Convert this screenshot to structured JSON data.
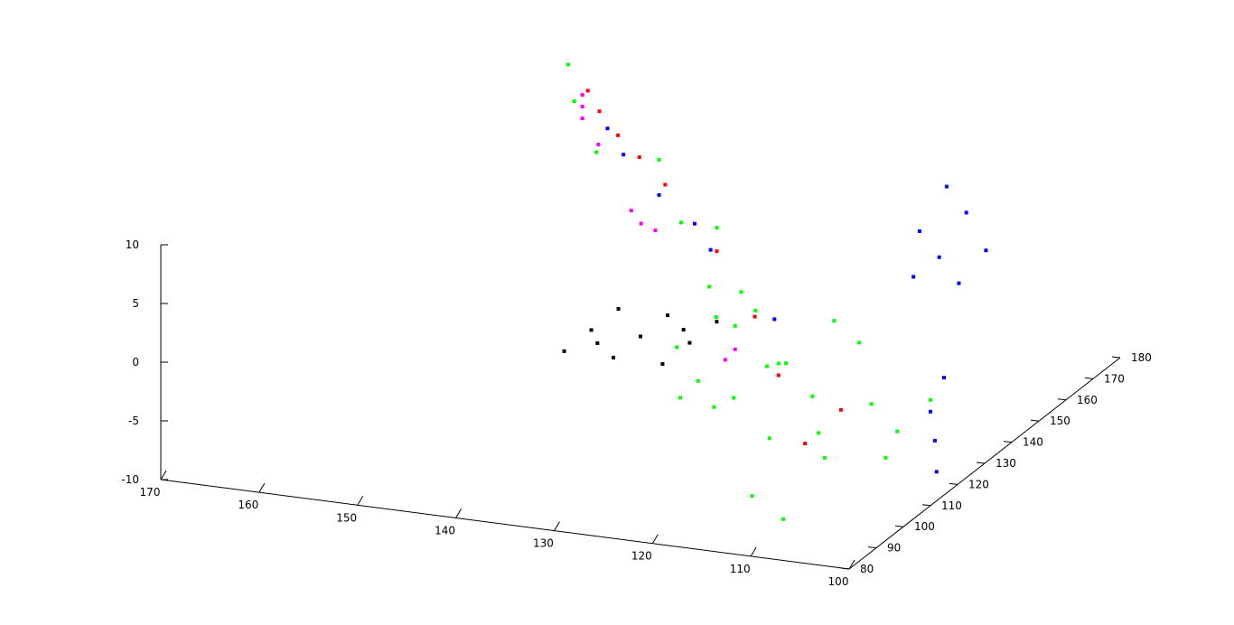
{
  "chart_data": {
    "type": "scatter",
    "title": "",
    "xlabel": "",
    "ylabel": "",
    "zlabel": "",
    "grid": false,
    "legend": "none",
    "axes": {
      "x": {
        "ticks": [
          100,
          110,
          120,
          130,
          140,
          150,
          160,
          170
        ],
        "range": [
          100,
          170
        ]
      },
      "y": {
        "ticks": [
          80,
          90,
          100,
          110,
          120,
          130,
          140,
          150,
          160,
          170,
          180
        ],
        "range": [
          80,
          180
        ]
      },
      "z": {
        "ticks": [
          -10,
          -5,
          0,
          5,
          10
        ],
        "range": [
          -10,
          10
        ]
      }
    },
    "series_colors": {
      "ground": "#000000",
      "vegetation": "#00ff00",
      "building": "#0000ff",
      "wire": "#ff0000",
      "pole": "#ff00ff"
    },
    "series": [
      {
        "class": "ground",
        "color": "#000000",
        "points": [
          [
            140,
            120,
            -3
          ],
          [
            135,
            120,
            -3
          ],
          [
            130,
            120,
            -3
          ],
          [
            140,
            130,
            -3
          ],
          [
            135,
            130,
            -3
          ],
          [
            130,
            130,
            -3
          ],
          [
            140,
            140,
            -3
          ],
          [
            135,
            140,
            -3
          ],
          [
            130,
            140,
            -3
          ],
          [
            138,
            125,
            -3
          ],
          [
            132,
            135,
            -3
          ]
        ]
      },
      {
        "class": "vegetation",
        "color": "#00ff00",
        "points": [
          [
            125,
            115,
            -3
          ],
          [
            124,
            118,
            2
          ],
          [
            122,
            120,
            4
          ],
          [
            120,
            118,
            3
          ],
          [
            118,
            115,
            -1
          ],
          [
            120,
            110,
            -3
          ],
          [
            115,
            105,
            -5
          ],
          [
            116,
            112,
            0
          ],
          [
            112,
            110,
            -2
          ],
          [
            110,
            105,
            -4
          ],
          [
            108,
            100,
            -5
          ],
          [
            112,
            118,
            3
          ],
          [
            110,
            120,
            1
          ],
          [
            106,
            110,
            -2
          ],
          [
            104,
            108,
            -6
          ],
          [
            118,
            122,
            -2
          ],
          [
            122,
            110,
            -4
          ],
          [
            114,
            95,
            -8
          ],
          [
            110,
            92,
            -9
          ],
          [
            124,
            125,
            0
          ],
          [
            130,
            140,
            5
          ],
          [
            135,
            145,
            4
          ],
          [
            128,
            130,
            2
          ],
          [
            140,
            155,
            7
          ],
          [
            145,
            150,
            8
          ],
          [
            150,
            160,
            10
          ],
          [
            152,
            165,
            12
          ],
          [
            128,
            118,
            -1
          ],
          [
            126,
            112,
            -4
          ],
          [
            102,
            105,
            -3
          ],
          [
            100,
            110,
            -1
          ]
        ]
      },
      {
        "class": "building",
        "color": "#0000ff",
        "points": [
          [
            108,
            135,
            8
          ],
          [
            106,
            135,
            6
          ],
          [
            104,
            135,
            4
          ],
          [
            108,
            145,
            10
          ],
          [
            106,
            145,
            8
          ],
          [
            104,
            145,
            5
          ],
          [
            110,
            140,
            3
          ],
          [
            100,
            110,
            -2
          ],
          [
            99,
            108,
            -4
          ],
          [
            98,
            105,
            -6
          ],
          [
            100,
            115,
            0
          ],
          [
            135,
            150,
            3
          ],
          [
            140,
            155,
            4
          ],
          [
            145,
            160,
            6
          ],
          [
            148,
            165,
            7
          ],
          [
            132,
            145,
            2
          ],
          [
            120,
            125,
            1
          ]
        ]
      },
      {
        "class": "wire",
        "color": "#ff0000",
        "points": [
          [
            150,
            165,
            10
          ],
          [
            148,
            162,
            9
          ],
          [
            145,
            158,
            8
          ],
          [
            142,
            155,
            7
          ],
          [
            138,
            150,
            6
          ],
          [
            130,
            140,
            3
          ],
          [
            122,
            125,
            1
          ],
          [
            116,
            112,
            -1
          ],
          [
            110,
            100,
            -4
          ],
          [
            108,
            106,
            -2
          ]
        ]
      },
      {
        "class": "pole",
        "color": "#ff00ff",
        "points": [
          [
            150,
            163,
            8
          ],
          [
            150,
            163,
            9
          ],
          [
            150,
            163,
            10
          ],
          [
            147,
            158,
            7
          ],
          [
            142,
            152,
            3
          ],
          [
            141,
            152,
            2
          ],
          [
            139,
            150,
            2
          ],
          [
            125,
            125,
            -3
          ],
          [
            124,
            125,
            -2
          ]
        ]
      }
    ]
  }
}
